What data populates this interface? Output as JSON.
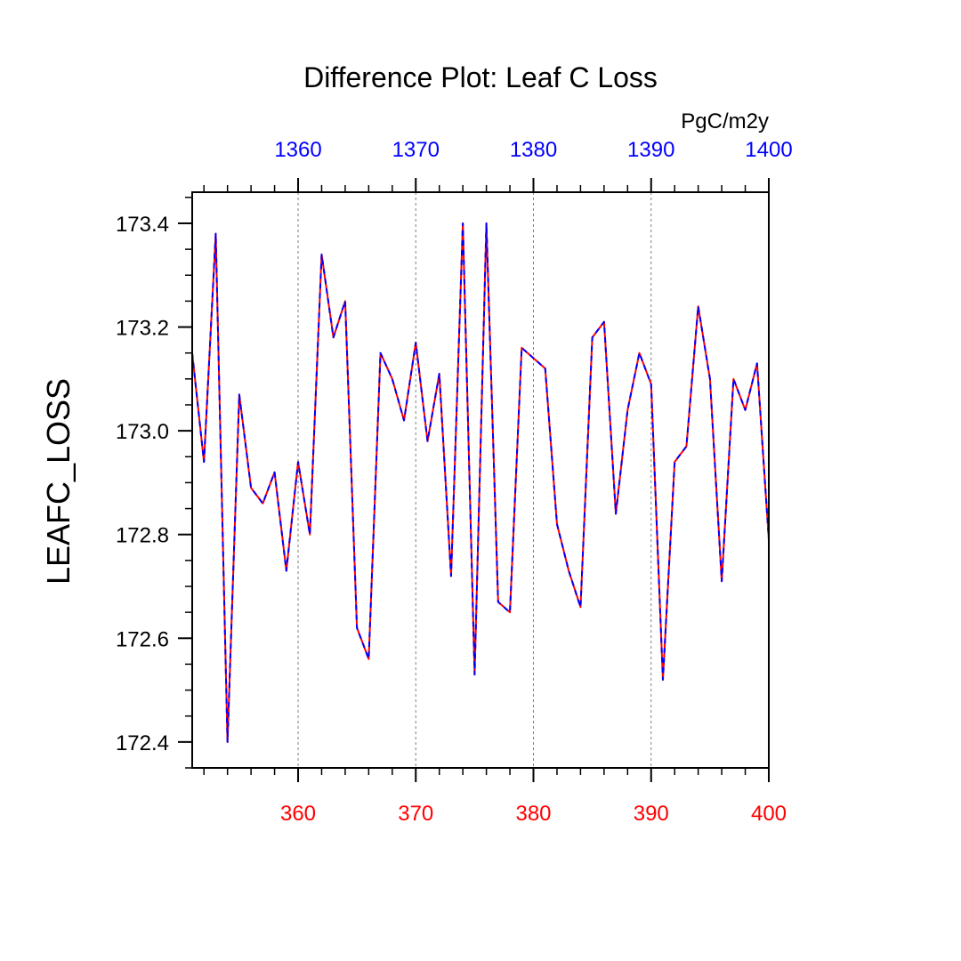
{
  "chart_data": {
    "type": "line",
    "title": "Difference Plot: Leaf C Loss",
    "units_label": "PgC/m2y",
    "ylabel": "LEAFC_LOSS",
    "xlabel": "",
    "xlim": [
      351,
      400
    ],
    "ylim": [
      172.35,
      173.46
    ],
    "grid": "vertical dashed lines at major x ticks",
    "x_ticks_bottom": [
      360,
      370,
      380,
      390,
      400
    ],
    "x_ticks_top_labels": [
      "1360",
      "1370",
      "1380",
      "1390",
      "1400"
    ],
    "y_ticks": [
      172.4,
      172.6,
      172.8,
      173.0,
      173.2,
      173.4
    ],
    "y_tick_labels": [
      "172.4",
      "172.6",
      "172.8",
      "173.0",
      "173.2",
      "173.4"
    ],
    "colors": {
      "bottom_axis": "#ff0000",
      "top_axis": "#0000ff",
      "series_a": "#ff0000",
      "series_b": "#0000ff"
    },
    "x": [
      351,
      352,
      353,
      354,
      355,
      356,
      357,
      358,
      359,
      360,
      361,
      362,
      363,
      364,
      365,
      366,
      367,
      368,
      369,
      370,
      371,
      372,
      373,
      374,
      375,
      376,
      377,
      378,
      379,
      380,
      381,
      382,
      383,
      384,
      385,
      386,
      387,
      388,
      389,
      390,
      391,
      392,
      393,
      394,
      395,
      396,
      397,
      398,
      399,
      400
    ],
    "series": [
      {
        "values": [
          173.15,
          172.94,
          173.38,
          172.4,
          173.07,
          172.89,
          172.86,
          172.92,
          172.73,
          172.94,
          172.8,
          173.34,
          173.18,
          173.25,
          172.62,
          172.56,
          173.15,
          173.1,
          173.02,
          173.17,
          172.98,
          173.11,
          172.72,
          173.4,
          172.53,
          173.4,
          172.67,
          172.65,
          173.16,
          173.14,
          173.12,
          172.82,
          172.73,
          172.66,
          173.18,
          173.21,
          172.84,
          173.04,
          173.15,
          173.09,
          172.52,
          172.94,
          172.97,
          173.24,
          173.1,
          172.71,
          173.1,
          173.04,
          173.13,
          172.79
        ]
      },
      {
        "values": [
          173.15,
          172.94,
          173.38,
          172.4,
          173.07,
          172.89,
          172.86,
          172.92,
          172.73,
          172.94,
          172.8,
          173.34,
          173.18,
          173.25,
          172.62,
          172.56,
          173.15,
          173.1,
          173.02,
          173.17,
          172.98,
          173.11,
          172.72,
          173.4,
          172.53,
          173.4,
          172.67,
          172.65,
          173.16,
          173.14,
          173.12,
          172.82,
          172.73,
          172.66,
          173.18,
          173.21,
          172.84,
          173.04,
          173.15,
          173.09,
          172.52,
          172.94,
          172.97,
          173.24,
          173.1,
          172.71,
          173.1,
          173.04,
          173.13,
          172.79
        ]
      }
    ]
  }
}
